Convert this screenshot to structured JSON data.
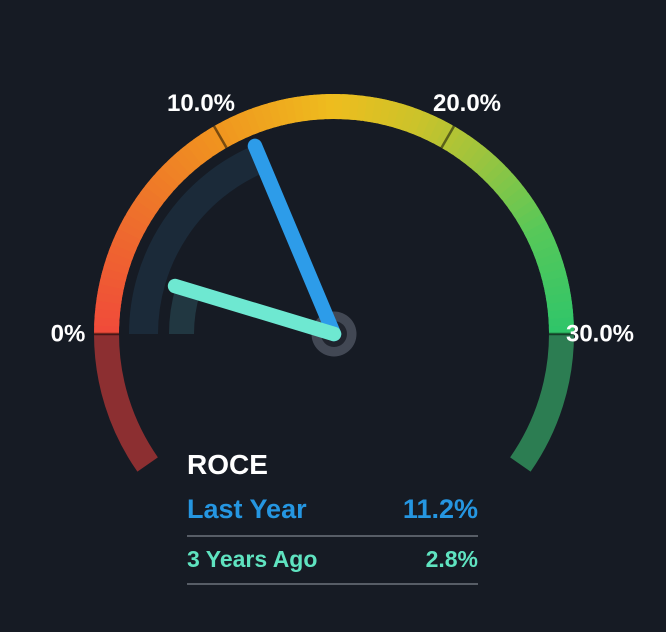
{
  "page": {
    "background": "#161b24"
  },
  "chart_data": {
    "type": "gauge",
    "title": "ROCE",
    "title_color": "#ffffff",
    "unit": "%",
    "min": 0,
    "max": 30,
    "start_angle": 180,
    "end_angle": 0,
    "overshoot_degrees": 35,
    "ticks": [
      {
        "value": 0,
        "label": "0%"
      },
      {
        "value": 10,
        "label": "10.0%"
      },
      {
        "value": 20,
        "label": "20.0%"
      },
      {
        "value": 30,
        "label": "30.0%"
      }
    ],
    "tick_label_color": "#ffffff",
    "tick_mark_color": "rgba(0,0,0,0.5)",
    "arc_gradient_stops": [
      {
        "t": 0.0,
        "color": "#f04a3a"
      },
      {
        "t": 0.17,
        "color": "#ee6f2c"
      },
      {
        "t": 0.33,
        "color": "#f0941f"
      },
      {
        "t": 0.5,
        "color": "#eebd1e"
      },
      {
        "t": 0.62,
        "color": "#cbc32a"
      },
      {
        "t": 0.72,
        "color": "#9cc43e"
      },
      {
        "t": 0.85,
        "color": "#57c859"
      },
      {
        "t": 1.0,
        "color": "#2ec56a"
      }
    ],
    "muted_below_min_color": "#8c2f31",
    "muted_above_max_color": "#2c7d52",
    "hub_outer_color": "#424854",
    "hub_inner_color": "#20242d",
    "series": [
      {
        "name": "Last Year",
        "value": 11.2,
        "display": "11.2%",
        "needle_color": "#2d9ce9",
        "track_color": "#1b2a39",
        "label_color": "#2596e1"
      },
      {
        "name": "3 Years Ago",
        "value": 2.8,
        "display": "2.8%",
        "needle_color": "#6ee8d1",
        "track_color": "#213741",
        "label_color": "#5fe3c0"
      }
    ],
    "legend": {
      "divider_color": "#575d66"
    }
  }
}
